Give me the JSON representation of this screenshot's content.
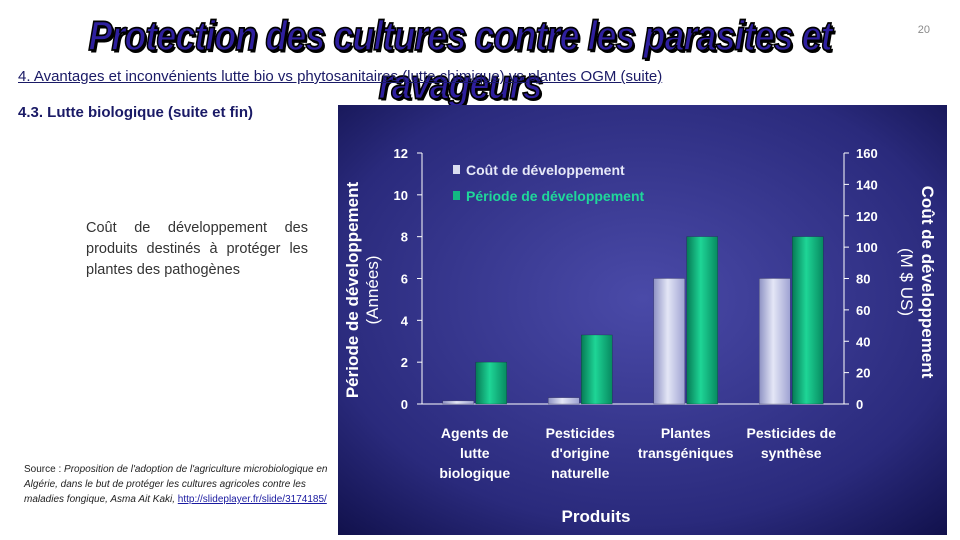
{
  "slide": {
    "title": "Protection des cultures contre les parasites et ravageurs",
    "page_number": "20",
    "subtitle": "4. Avantages et inconvénients lutte bio vs phytosanitaires (lutte chimique) vs plantes OGM (suite)",
    "section": "4.3. Lutte biologique (suite et fin)",
    "description": "Coût de développement des produits destinés à protéger les plantes des pathogènes",
    "source_label": "Source : ",
    "source_text": "Proposition de l'adoption de l'agriculture microbiologique en Algérie, dans le but de protéger les cultures agricoles contre les maladies fongique, Asma Ait Kaki,",
    "source_link": "http://slideplayer.fr/slide/3174185/"
  },
  "colors": {
    "chart_bg": "#2a2a7c",
    "cost_bar": "#b9bde0",
    "period_bar": "#0ea877",
    "title_fill": "#2e1f9e"
  },
  "chart_data": {
    "type": "bar",
    "categories": [
      [
        "Agents de",
        "lutte",
        "biologique"
      ],
      [
        "Pesticides",
        "d'origine",
        "naturelle"
      ],
      [
        "Plantes",
        "transgéniques"
      ],
      [
        "Pesticides de",
        "synthèse"
      ]
    ],
    "series": [
      {
        "name": "Coût de développement",
        "axis": "right",
        "values": [
          2,
          4,
          80,
          80
        ]
      },
      {
        "name": "Période de développement",
        "axis": "left",
        "values": [
          2,
          3.3,
          8,
          8
        ]
      }
    ],
    "xlabel": "Produits",
    "ylabel_left": [
      "Période de développement",
      "(Années)"
    ],
    "ylabel_right": [
      "Coût de développement",
      "(M $ US)"
    ],
    "ylim_left": [
      0,
      12
    ],
    "yticks_left": [
      0,
      2,
      4,
      6,
      8,
      10,
      12
    ],
    "ylim_right": [
      0,
      160
    ],
    "yticks_right": [
      0,
      20,
      40,
      60,
      80,
      100,
      120,
      140,
      160
    ],
    "grid": false,
    "legend_position": "top-left"
  }
}
